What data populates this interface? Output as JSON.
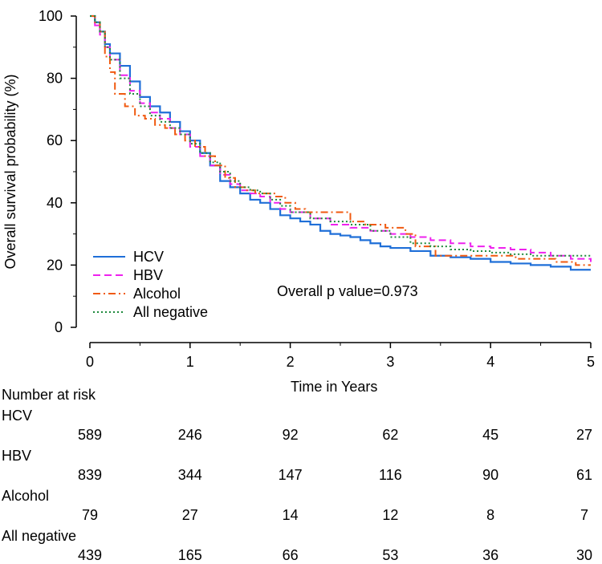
{
  "chart_data": {
    "type": "line",
    "ylabel": "Overall survival probability (%)",
    "xlabel": "Time in Years",
    "xlim": [
      0,
      5
    ],
    "ylim": [
      0,
      100
    ],
    "x_ticks": [
      "0",
      "1",
      "2",
      "3",
      "4",
      "5"
    ],
    "y_ticks": [
      "0",
      "20",
      "40",
      "60",
      "80",
      "100"
    ],
    "grid": false,
    "legend_position": "bottom-left",
    "annotation": "Overall p value=0.973",
    "series": [
      {
        "name": "HCV",
        "color": "#1f6fd8",
        "dash": "solid",
        "x": [
          0,
          0.05,
          0.1,
          0.15,
          0.2,
          0.3,
          0.4,
          0.5,
          0.6,
          0.7,
          0.8,
          0.9,
          1.0,
          1.1,
          1.2,
          1.3,
          1.4,
          1.5,
          1.6,
          1.7,
          1.8,
          1.9,
          2.0,
          2.1,
          2.2,
          2.3,
          2.4,
          2.5,
          2.6,
          2.7,
          2.8,
          2.9,
          3.0,
          3.2,
          3.4,
          3.6,
          3.8,
          4.0,
          4.2,
          4.4,
          4.6,
          4.8,
          5.0
        ],
        "y": [
          100,
          98,
          95,
          91,
          88,
          84,
          79,
          74,
          71,
          69,
          66,
          63,
          60,
          56,
          52,
          47,
          45,
          43,
          41,
          40,
          38,
          36,
          35,
          34,
          33,
          31,
          30,
          29.5,
          29,
          28,
          27,
          26,
          25.5,
          24.5,
          23,
          22.5,
          22,
          21,
          20.5,
          20,
          19.5,
          18.5,
          18.5
        ]
      },
      {
        "name": "HBV",
        "color": "#ee22ee",
        "dash": "dash",
        "x": [
          0,
          0.05,
          0.1,
          0.15,
          0.2,
          0.3,
          0.4,
          0.5,
          0.6,
          0.7,
          0.8,
          0.9,
          1.0,
          1.1,
          1.2,
          1.3,
          1.4,
          1.5,
          1.6,
          1.7,
          1.8,
          1.9,
          2.0,
          2.2,
          2.4,
          2.6,
          2.8,
          3.0,
          3.2,
          3.4,
          3.6,
          3.8,
          4.0,
          4.2,
          4.4,
          4.6,
          4.8,
          5.0
        ],
        "y": [
          100,
          97,
          94,
          90,
          86,
          81,
          76,
          72,
          69,
          67,
          64,
          62,
          58,
          55,
          52,
          49,
          46,
          44,
          43,
          42,
          40,
          38,
          37,
          35,
          33,
          32,
          31,
          30,
          29,
          28,
          27,
          26,
          25.5,
          25,
          24,
          23,
          22,
          21
        ]
      },
      {
        "name": "Alcohol",
        "color": "#f05a10",
        "dash": "dashdot",
        "x": [
          0,
          0.05,
          0.1,
          0.15,
          0.2,
          0.25,
          0.35,
          0.45,
          0.55,
          0.65,
          0.75,
          0.85,
          0.95,
          1.05,
          1.15,
          1.25,
          1.35,
          1.45,
          1.55,
          1.65,
          1.75,
          1.85,
          1.95,
          2.05,
          2.15,
          2.35,
          2.55,
          2.6,
          2.75,
          2.95,
          3.15,
          3.25,
          3.45,
          3.65,
          3.85,
          4.05,
          4.25,
          4.45,
          4.65,
          4.85,
          5.0
        ],
        "y": [
          100,
          98,
          95,
          87,
          82,
          75,
          71,
          68,
          67,
          65,
          64,
          62,
          60,
          58,
          55,
          52,
          48,
          45,
          44,
          43,
          43,
          42,
          40,
          38,
          37,
          37,
          37,
          34,
          33,
          32,
          30,
          26,
          23,
          23,
          23,
          23,
          22,
          22,
          21,
          20,
          20
        ]
      },
      {
        "name": "All negative",
        "color": "#1e8a3c",
        "dash": "dot",
        "x": [
          0,
          0.05,
          0.1,
          0.15,
          0.2,
          0.3,
          0.4,
          0.5,
          0.6,
          0.7,
          0.8,
          0.9,
          1.0,
          1.1,
          1.2,
          1.3,
          1.4,
          1.5,
          1.6,
          1.7,
          1.8,
          1.9,
          2.0,
          2.2,
          2.4,
          2.6,
          2.8,
          3.0,
          3.2,
          3.4,
          3.6,
          3.8,
          4.0,
          4.2,
          4.4,
          4.6,
          4.8,
          5.0
        ],
        "y": [
          100,
          98,
          95,
          90,
          86,
          80,
          75,
          71,
          68,
          66,
          64,
          62,
          59,
          56,
          53,
          50,
          47,
          45,
          44,
          43,
          41,
          39,
          37,
          35,
          34,
          33,
          31,
          29,
          27,
          26,
          25,
          24.5,
          24,
          23.5,
          23,
          23,
          23,
          23
        ]
      }
    ]
  },
  "risk_table": {
    "title": "Number at risk",
    "groups": [
      {
        "name": "HCV",
        "values": [
          "589",
          "246",
          "92",
          "62",
          "45",
          "27"
        ]
      },
      {
        "name": "HBV",
        "values": [
          "839",
          "344",
          "147",
          "116",
          "90",
          "61"
        ]
      },
      {
        "name": "Alcohol",
        "values": [
          "79",
          "27",
          "14",
          "12",
          "8",
          "7"
        ]
      },
      {
        "name": "All negative",
        "values": [
          "439",
          "165",
          "66",
          "53",
          "36",
          "30"
        ]
      }
    ]
  }
}
